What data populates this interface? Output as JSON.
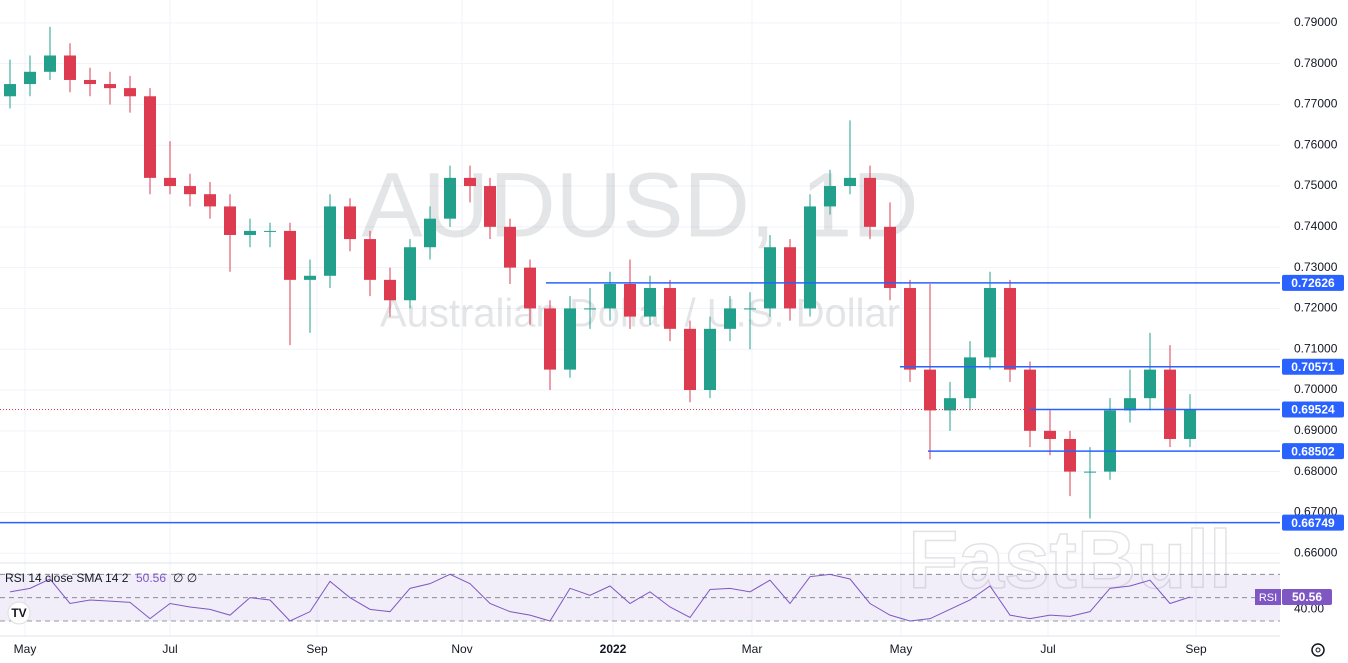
{
  "chart_data": {
    "type": "candlestick",
    "title": "AUDUSD, 1D",
    "subtitle": "Australian Dollar / U.S. Dollar",
    "watermark": "FastBull",
    "open": [
      0.772,
      0.775,
      0.778,
      0.782,
      0.776,
      0.775,
      0.774,
      0.772,
      0.752,
      0.75,
      0.748,
      0.745,
      0.738,
      0.739,
      0.739,
      0.727,
      0.728,
      0.745,
      0.737,
      0.727,
      0.722,
      0.735,
      0.742,
      0.752,
      0.75,
      0.74,
      0.73,
      0.72,
      0.705,
      0.72,
      0.72,
      0.726,
      0.718,
      0.725,
      0.715,
      0.7,
      0.715,
      0.72,
      0.72,
      0.735,
      0.72,
      0.745,
      0.75,
      0.752,
      0.74,
      0.725,
      0.705,
      0.695,
      0.698,
      0.708,
      0.725,
      0.705,
      0.69,
      0.688,
      0.68,
      0.68,
      0.695,
      0.698,
      0.705,
      0.688
    ],
    "high": [
      0.781,
      0.782,
      0.789,
      0.785,
      0.779,
      0.778,
      0.777,
      0.774,
      0.761,
      0.753,
      0.751,
      0.748,
      0.742,
      0.741,
      0.741,
      0.732,
      0.748,
      0.747,
      0.739,
      0.73,
      0.737,
      0.745,
      0.755,
      0.755,
      0.752,
      0.742,
      0.732,
      0.722,
      0.723,
      0.725,
      0.729,
      0.732,
      0.728,
      0.727,
      0.717,
      0.718,
      0.723,
      0.724,
      0.738,
      0.737,
      0.748,
      0.754,
      0.7661,
      0.755,
      0.746,
      0.727,
      0.726,
      0.702,
      0.712,
      0.729,
      0.727,
      0.707,
      0.695,
      0.69,
      0.686,
      0.698,
      0.705,
      0.714,
      0.711,
      0.699
    ],
    "low": [
      0.769,
      0.772,
      0.776,
      0.773,
      0.772,
      0.77,
      0.768,
      0.748,
      0.748,
      0.745,
      0.742,
      0.729,
      0.735,
      0.735,
      0.711,
      0.714,
      0.725,
      0.734,
      0.723,
      0.718,
      0.72,
      0.732,
      0.74,
      0.746,
      0.737,
      0.726,
      0.716,
      0.7,
      0.703,
      0.715,
      0.717,
      0.715,
      0.716,
      0.712,
      0.697,
      0.698,
      0.712,
      0.71,
      0.718,
      0.717,
      0.718,
      0.743,
      0.748,
      0.737,
      0.722,
      0.702,
      0.683,
      0.69,
      0.695,
      0.705,
      0.702,
      0.686,
      0.684,
      0.674,
      0.6685,
      0.678,
      0.692,
      0.695,
      0.686,
      0.686
    ],
    "close": [
      0.775,
      0.778,
      0.782,
      0.776,
      0.775,
      0.774,
      0.772,
      0.752,
      0.75,
      0.748,
      0.745,
      0.738,
      0.739,
      0.739,
      0.727,
      0.728,
      0.745,
      0.737,
      0.727,
      0.722,
      0.735,
      0.742,
      0.752,
      0.75,
      0.74,
      0.73,
      0.72,
      0.705,
      0.72,
      0.72,
      0.726,
      0.718,
      0.725,
      0.715,
      0.7,
      0.715,
      0.72,
      0.72,
      0.735,
      0.72,
      0.745,
      0.75,
      0.752,
      0.74,
      0.725,
      0.705,
      0.695,
      0.698,
      0.708,
      0.725,
      0.705,
      0.69,
      0.688,
      0.68,
      0.68,
      0.695,
      0.698,
      0.705,
      0.688,
      0.6952
    ],
    "up_color": "#22a08c",
    "down_color": "#dd3c50",
    "xlim": [
      0,
      64
    ],
    "xticks": [
      {
        "value": 1.25,
        "label": "May"
      },
      {
        "value": 8.5,
        "label": "Jul"
      },
      {
        "value": 15.85,
        "label": "Sep"
      },
      {
        "value": 23.1,
        "label": "Nov"
      },
      {
        "value": 30.65,
        "label": "2022"
      },
      {
        "value": 37.6,
        "label": "Mar"
      },
      {
        "value": 45.05,
        "label": "May"
      },
      {
        "value": 52.4,
        "label": "Jul"
      },
      {
        "value": 59.8,
        "label": "Sep"
      }
    ],
    "ylim": [
      0.6576,
      0.7956
    ],
    "yticks": [
      {
        "value": 0.79,
        "label": "0.79000"
      },
      {
        "value": 0.78,
        "label": "0.78000"
      },
      {
        "value": 0.77,
        "label": "0.77000"
      },
      {
        "value": 0.76,
        "label": "0.76000"
      },
      {
        "value": 0.75,
        "label": "0.75000"
      },
      {
        "value": 0.74,
        "label": "0.74000"
      },
      {
        "value": 0.73,
        "label": "0.73000"
      },
      {
        "value": 0.72,
        "label": "0.72000"
      },
      {
        "value": 0.71,
        "label": "0.71000"
      },
      {
        "value": 0.7,
        "label": "0.70000"
      },
      {
        "value": 0.69,
        "label": "0.69000"
      },
      {
        "value": 0.68,
        "label": "0.68000"
      },
      {
        "value": 0.67,
        "label": "0.67000"
      },
      {
        "value": 0.66,
        "label": "0.66000"
      }
    ],
    "grid": true,
    "level_color": "#2962ff",
    "levels": [
      {
        "value": 0.72626,
        "label": "0.72626"
      },
      {
        "value": 0.70571,
        "label": "0.70571"
      },
      {
        "value": 0.69524,
        "label": "0.69524"
      },
      {
        "value": 0.68502,
        "label": "0.68502"
      },
      {
        "value": 0.66749,
        "label": "0.66749"
      }
    ],
    "rsi": {
      "name": "RSI 14 close SMA 14 2",
      "extra": "∅ ∅",
      "badge": "RSI",
      "color": "#7e57c2",
      "values": [
        55,
        58,
        66,
        45,
        48,
        47,
        46,
        32,
        45,
        42,
        40,
        35,
        50,
        48,
        30,
        38,
        64,
        50,
        40,
        38,
        58,
        62,
        70,
        62,
        45,
        38,
        35,
        30,
        58,
        52,
        60,
        45,
        55,
        42,
        33,
        57,
        58,
        55,
        65,
        45,
        68,
        70,
        66,
        45,
        35,
        30,
        32,
        40,
        48,
        60,
        35,
        32,
        35,
        34,
        38,
        58,
        60,
        65,
        45,
        50.56
      ],
      "ylim": [
        24,
        78
      ],
      "bands": [
        70,
        50,
        30
      ],
      "yticks": [
        {
          "value": 40,
          "label": "40.00"
        }
      ]
    }
  }
}
